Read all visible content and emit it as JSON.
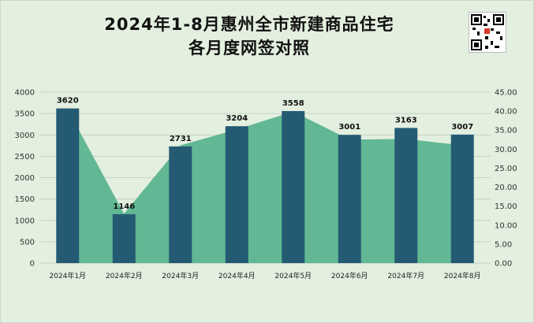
{
  "title_line1": "2024年1-8月惠州全市新建商品住宅",
  "title_line2": "各月度网签对照",
  "chart_data": {
    "type": "bar",
    "categories": [
      "2024年1月",
      "2024年2月",
      "2024年3月",
      "2024年4月",
      "2024年5月",
      "2024年6月",
      "2024年7月",
      "2024年8月"
    ],
    "series": [
      {
        "values": [
          3620,
          1146,
          2731,
          3204,
          3558,
          3001,
          3163,
          3007
        ],
        "color": "#245b73",
        "kind": "bar",
        "axis": "left"
      },
      {
        "values": [
          40.5,
          13.0,
          31.0,
          35.2,
          39.9,
          32.5,
          32.7,
          31.0
        ],
        "color": "#62b894",
        "kind": "area",
        "axis": "right"
      }
    ],
    "ylim_left": [
      0,
      4000
    ],
    "yticks_left": [
      0,
      500,
      1000,
      1500,
      2000,
      2500,
      3000,
      3500,
      4000
    ],
    "ylim_right": [
      0,
      45
    ],
    "yticks_right": [
      "0.00",
      "5.00",
      "10.00",
      "15.00",
      "20.00",
      "25.00",
      "30.00",
      "35.00",
      "40.00",
      "45.00"
    ],
    "grid": true,
    "legend": "none"
  }
}
